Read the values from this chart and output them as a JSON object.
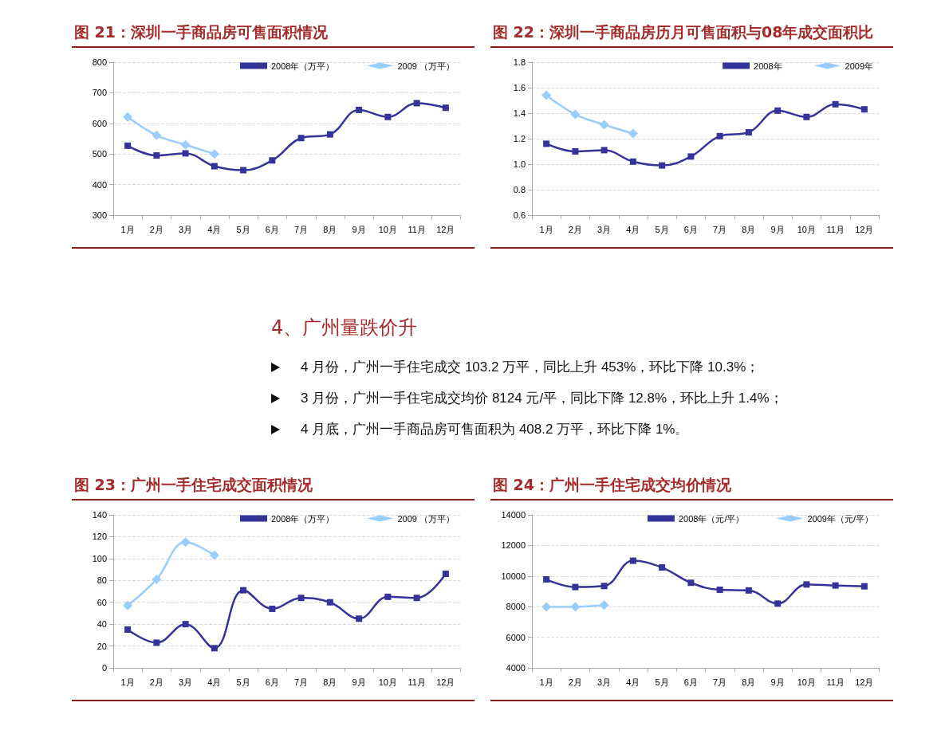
{
  "chart_data": [
    {
      "type": "line",
      "title": "图 21：深圳一手商品房可售面积情况",
      "categories": [
        "1月",
        "2月",
        "3月",
        "4月",
        "5月",
        "6月",
        "7月",
        "8月",
        "9月",
        "10月",
        "11月",
        "12月"
      ],
      "series": [
        {
          "name": "2008年（万平）",
          "color": "#333399",
          "marker": "square",
          "values": [
            527,
            495,
            502,
            460,
            447,
            479,
            552,
            564,
            644,
            621,
            666,
            651
          ]
        },
        {
          "name": "2009 （万平）",
          "color": "#99ccff",
          "marker": "diamond",
          "values": [
            621,
            561,
            530,
            500,
            null,
            null,
            null,
            null,
            null,
            null,
            null,
            null
          ]
        }
      ],
      "ylim": [
        300,
        800
      ],
      "yticks": [
        300,
        400,
        500,
        600,
        700,
        800
      ],
      "grid": "y",
      "legend": "top right"
    },
    {
      "type": "line",
      "title": "图 22：深圳一手商品房历月可售面积与08年成交面积比",
      "categories": [
        "1月",
        "2月",
        "3月",
        "4月",
        "5月",
        "6月",
        "7月",
        "8月",
        "9月",
        "10月",
        "11月",
        "12月"
      ],
      "series": [
        {
          "name": "2008年",
          "color": "#333399",
          "marker": "square",
          "values": [
            1.16,
            1.1,
            1.11,
            1.02,
            0.99,
            1.06,
            1.22,
            1.25,
            1.42,
            1.37,
            1.47,
            1.43
          ]
        },
        {
          "name": "2009年",
          "color": "#99ccff",
          "marker": "diamond",
          "values": [
            1.54,
            1.39,
            1.31,
            1.24,
            null,
            null,
            null,
            null,
            null,
            null,
            null,
            null
          ]
        }
      ],
      "ylim": [
        0.6,
        1.8
      ],
      "yticks": [
        0.6,
        0.8,
        {
          "value": 1,
          "label": "1.0"
        },
        1.2,
        1.4,
        1.6,
        1.8
      ],
      "grid": "y",
      "legend": "top right"
    },
    {
      "type": "other",
      "title": "4、广州量跌价升",
      "annotations": [
        "4 月份，广州一手住宅成交 103.2 万平，同比上升 453%，环比下降 10.3%；",
        "3 月份，广州一手住宅成交均价 8124 元/平，同比下降 12.8%，环比上升 1.4%；",
        "4 月底，广州一手商品房可售面积为 408.2 万平，环比下降 1%。"
      ]
    },
    {
      "type": "line",
      "title": "图 23：广州一手住宅成交面积情况",
      "categories": [
        "1月",
        "2月",
        "3月",
        "4月",
        "5月",
        "6月",
        "7月",
        "8月",
        "9月",
        "10月",
        "11月",
        "12月"
      ],
      "series": [
        {
          "name": "2008年（万平）",
          "color": "#333399",
          "marker": "square",
          "values": [
            35,
            23,
            40,
            18,
            71,
            54,
            64,
            60,
            45,
            65,
            64,
            86
          ]
        },
        {
          "name": "2009 （万平）",
          "color": "#99ccff",
          "marker": "diamond",
          "values": [
            57,
            81,
            115,
            103,
            null,
            null,
            null,
            null,
            null,
            null,
            null,
            null
          ]
        }
      ],
      "ylim": [
        0,
        140
      ],
      "yticks": [
        0,
        20,
        40,
        60,
        80,
        100,
        120,
        140
      ],
      "grid": "y",
      "legend": "top right"
    },
    {
      "type": "line",
      "title": "图 24：广州一手住宅成交均价情况",
      "categories": [
        "1月",
        "2月",
        "3月",
        "4月",
        "5月",
        "6月",
        "7月",
        "8月",
        "9月",
        "10月",
        "11月",
        "12月"
      ],
      "series": [
        {
          "name": "2008年（元/平）",
          "color": "#333399",
          "marker": "square",
          "values": [
            9780,
            9280,
            9350,
            11000,
            10560,
            9560,
            9100,
            9060,
            8200,
            9450,
            9380,
            9330
          ]
        },
        {
          "name": "2009年（元/平）",
          "color": "#99ccff",
          "marker": "diamond",
          "values": [
            7980,
            7990,
            8100,
            null,
            null,
            null,
            null,
            null,
            null,
            null,
            null,
            null
          ]
        }
      ],
      "ylim": [
        4000,
        14000
      ],
      "yticks": [
        4000,
        6000,
        8000,
        10000,
        12000,
        14000
      ],
      "grid": "y",
      "legend": "top right"
    }
  ]
}
